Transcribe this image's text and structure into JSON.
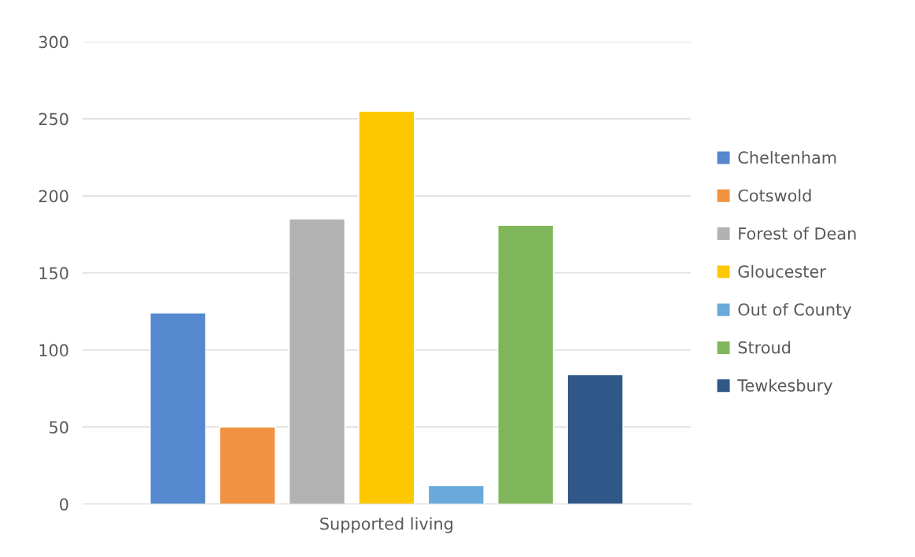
{
  "chart_data": {
    "type": "bar",
    "categories": [
      "Supported living"
    ],
    "series": [
      {
        "name": "Cheltenham",
        "color": "#5588cf",
        "values": [
          124
        ]
      },
      {
        "name": "Cotswold",
        "color": "#f09241",
        "values": [
          50
        ]
      },
      {
        "name": "Forest of Dean",
        "color": "#b2b2b2",
        "values": [
          185
        ]
      },
      {
        "name": "Gloucester",
        "color": "#fec800",
        "values": [
          255
        ]
      },
      {
        "name": "Out of County",
        "color": "#6aaadb",
        "values": [
          12
        ]
      },
      {
        "name": "Stroud",
        "color": "#80b75a",
        "values": [
          181
        ]
      },
      {
        "name": "Tewkesbury",
        "color": "#2f5788",
        "values": [
          84
        ]
      }
    ],
    "ylim": [
      0,
      300
    ],
    "yticks": [
      0,
      50,
      100,
      150,
      200,
      250,
      300
    ],
    "grid": "y",
    "legend": "right"
  }
}
